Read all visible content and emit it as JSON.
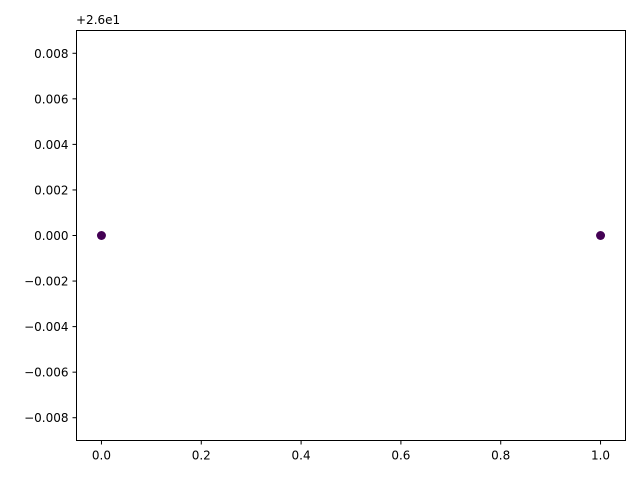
{
  "chart_data": {
    "type": "scatter",
    "title": "",
    "xlabel": "",
    "ylabel": "",
    "y_offset_text": "+2.6e1",
    "xlim": [
      -0.05,
      1.05
    ],
    "ylim": [
      -0.009,
      0.009
    ],
    "x_ticks": [
      0.0,
      0.2,
      0.4,
      0.6,
      0.8,
      1.0
    ],
    "x_tick_labels": [
      "0.0",
      "0.2",
      "0.4",
      "0.6",
      "0.8",
      "1.0"
    ],
    "y_ticks": [
      -0.008,
      -0.006,
      -0.004,
      -0.002,
      0.0,
      0.002,
      0.004,
      0.006,
      0.008
    ],
    "y_tick_labels": [
      "−0.008",
      "−0.006",
      "−0.004",
      "−0.002",
      "0.000",
      "0.002",
      "0.004",
      "0.006",
      "0.008"
    ],
    "grid": false,
    "series": [
      {
        "x": [
          0.0,
          1.0
        ],
        "y": [
          0.0,
          0.0
        ],
        "color": "#440154"
      }
    ]
  }
}
